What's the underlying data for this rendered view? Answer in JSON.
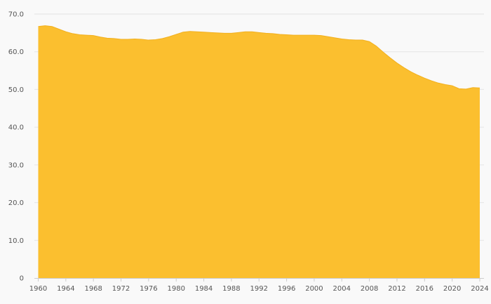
{
  "chart_data": {
    "type": "area",
    "title": "",
    "xlabel": "",
    "ylabel": "",
    "xlim": [
      1960,
      2024
    ],
    "ylim": [
      0,
      70
    ],
    "grid": true,
    "legend": "none",
    "colors": {
      "fill": "#fbbf2f",
      "stroke": "#f2b01e",
      "grid": "#e4e4e4",
      "text": "#555555",
      "background": "#f9f9f9"
    },
    "y_ticks": [
      {
        "value": 0,
        "label": "0"
      },
      {
        "value": 10,
        "label": "10.0"
      },
      {
        "value": 20,
        "label": "20.0"
      },
      {
        "value": 30,
        "label": "30.0"
      },
      {
        "value": 40,
        "label": "40.0"
      },
      {
        "value": 50,
        "label": "50.0"
      },
      {
        "value": 60,
        "label": "60.0"
      },
      {
        "value": 70,
        "label": "70.0"
      }
    ],
    "x_ticks": [
      1960,
      1964,
      1968,
      1972,
      1976,
      1980,
      1984,
      1988,
      1992,
      1996,
      2000,
      2004,
      2008,
      2012,
      2016,
      2020,
      2024
    ],
    "series": [
      {
        "x": [
          1960,
          1961,
          1962,
          1963,
          1964,
          1965,
          1966,
          1967,
          1968,
          1969,
          1970,
          1971,
          1972,
          1973,
          1974,
          1975,
          1976,
          1977,
          1978,
          1979,
          1980,
          1981,
          1982,
          1983,
          1984,
          1985,
          1986,
          1987,
          1988,
          1989,
          1990,
          1991,
          1992,
          1993,
          1994,
          1995,
          1996,
          1997,
          1998,
          1999,
          2000,
          2001,
          2002,
          2003,
          2004,
          2005,
          2006,
          2007,
          2008,
          2009,
          2010,
          2011,
          2012,
          2013,
          2014,
          2015,
          2016,
          2017,
          2018,
          2019,
          2020,
          2021,
          2022,
          2023,
          2024
        ],
        "values": [
          66.7,
          66.9,
          66.7,
          66.0,
          65.3,
          64.8,
          64.5,
          64.4,
          64.3,
          63.9,
          63.6,
          63.5,
          63.3,
          63.3,
          63.4,
          63.3,
          63.1,
          63.2,
          63.5,
          64.0,
          64.6,
          65.2,
          65.4,
          65.3,
          65.2,
          65.1,
          65.0,
          64.9,
          64.9,
          65.1,
          65.3,
          65.3,
          65.1,
          64.9,
          64.8,
          64.6,
          64.5,
          64.4,
          64.4,
          64.4,
          64.4,
          64.3,
          64.0,
          63.7,
          63.4,
          63.2,
          63.1,
          63.1,
          62.7,
          61.5,
          59.9,
          58.4,
          57.0,
          55.8,
          54.7,
          53.8,
          53.0,
          52.3,
          51.7,
          51.3,
          51.0,
          50.2,
          50.1,
          50.5,
          50.4
        ]
      }
    ]
  }
}
